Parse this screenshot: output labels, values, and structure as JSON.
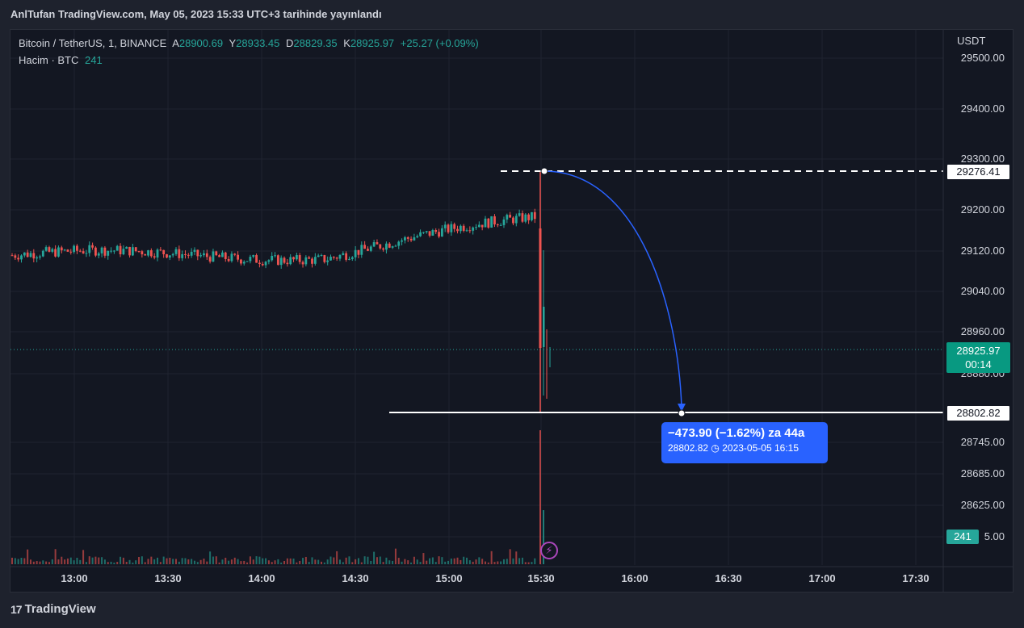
{
  "header": {
    "title": "AnlTufan TradingView.com, May 05, 2023 15:33 UTC+3 tarihinde yayınlandı"
  },
  "legend": {
    "symbol": "Bitcoin / TetherUS, 1, BINANCE",
    "open_label": "A",
    "open": "28900.69",
    "high_label": "Y",
    "high": "28933.45",
    "low_label": "D",
    "low": "28829.35",
    "close_label": "K",
    "close": "28925.97",
    "change": "+25.27 (+0.09%)",
    "volume_label": "Hacim · BTC",
    "volume": "241"
  },
  "price_axis": {
    "currency": "USDT",
    "ticks": [
      "29500.00",
      "29400.00",
      "29300.00",
      "29200.00",
      "29120.00",
      "29040.00",
      "28960.00",
      "28880.00",
      "28745.00",
      "28685.00",
      "28625.00",
      "5.00"
    ]
  },
  "time_axis": {
    "ticks": [
      "13:00",
      "13:30",
      "14:00",
      "14:30",
      "15:00",
      "15:30",
      "16:00",
      "16:30",
      "17:00",
      "17:30"
    ]
  },
  "tags": {
    "high_price": "29276.41",
    "target_price": "28802.82",
    "last_price": "28925.97",
    "countdown": "00:14",
    "volume": "241"
  },
  "tooltip": {
    "headline": "−473.90 (−1.62%) za 44a",
    "price": "28802.82",
    "date": "2023-05-05",
    "time": "16:15"
  },
  "footer": {
    "brand": "TradingView",
    "logo": "17"
  },
  "colors": {
    "up": "#26a69a",
    "down": "#ef5350",
    "accent": "#2962ff",
    "background": "#131722"
  },
  "icons": {
    "clock": "clock-icon",
    "bolt": "lightning-icon",
    "logo": "tradingview-logo-icon"
  }
}
